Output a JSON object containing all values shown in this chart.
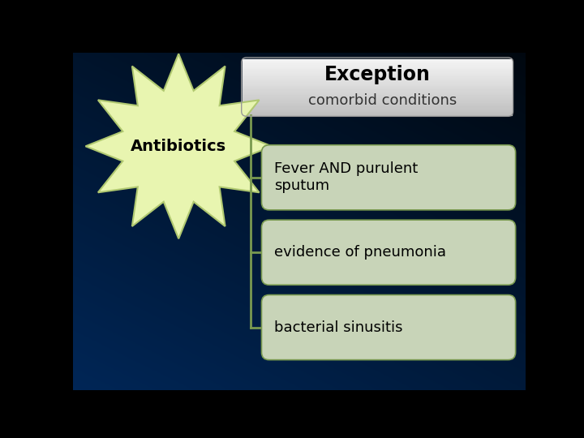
{
  "title": "Exception",
  "subtitle": "comorbid conditions",
  "antibiotics_label": "Antibiotics",
  "items": [
    "Fever AND purulent\nsputum",
    "evidence of pneumonia",
    "bacterial sinusitis"
  ],
  "star_color": "#e8f5b0",
  "star_edge_color": "#b0c870",
  "main_box_top_color": "#f0f0f0",
  "main_box_bot_color": "#c8c8c8",
  "item_box_color": "#c8d4b8",
  "item_box_edge_color": "#7a9a50",
  "connector_color": "#7a9a50",
  "title_fontsize": 17,
  "subtitle_fontsize": 13,
  "item_fontsize": 13,
  "antibiotics_fontsize": 14
}
